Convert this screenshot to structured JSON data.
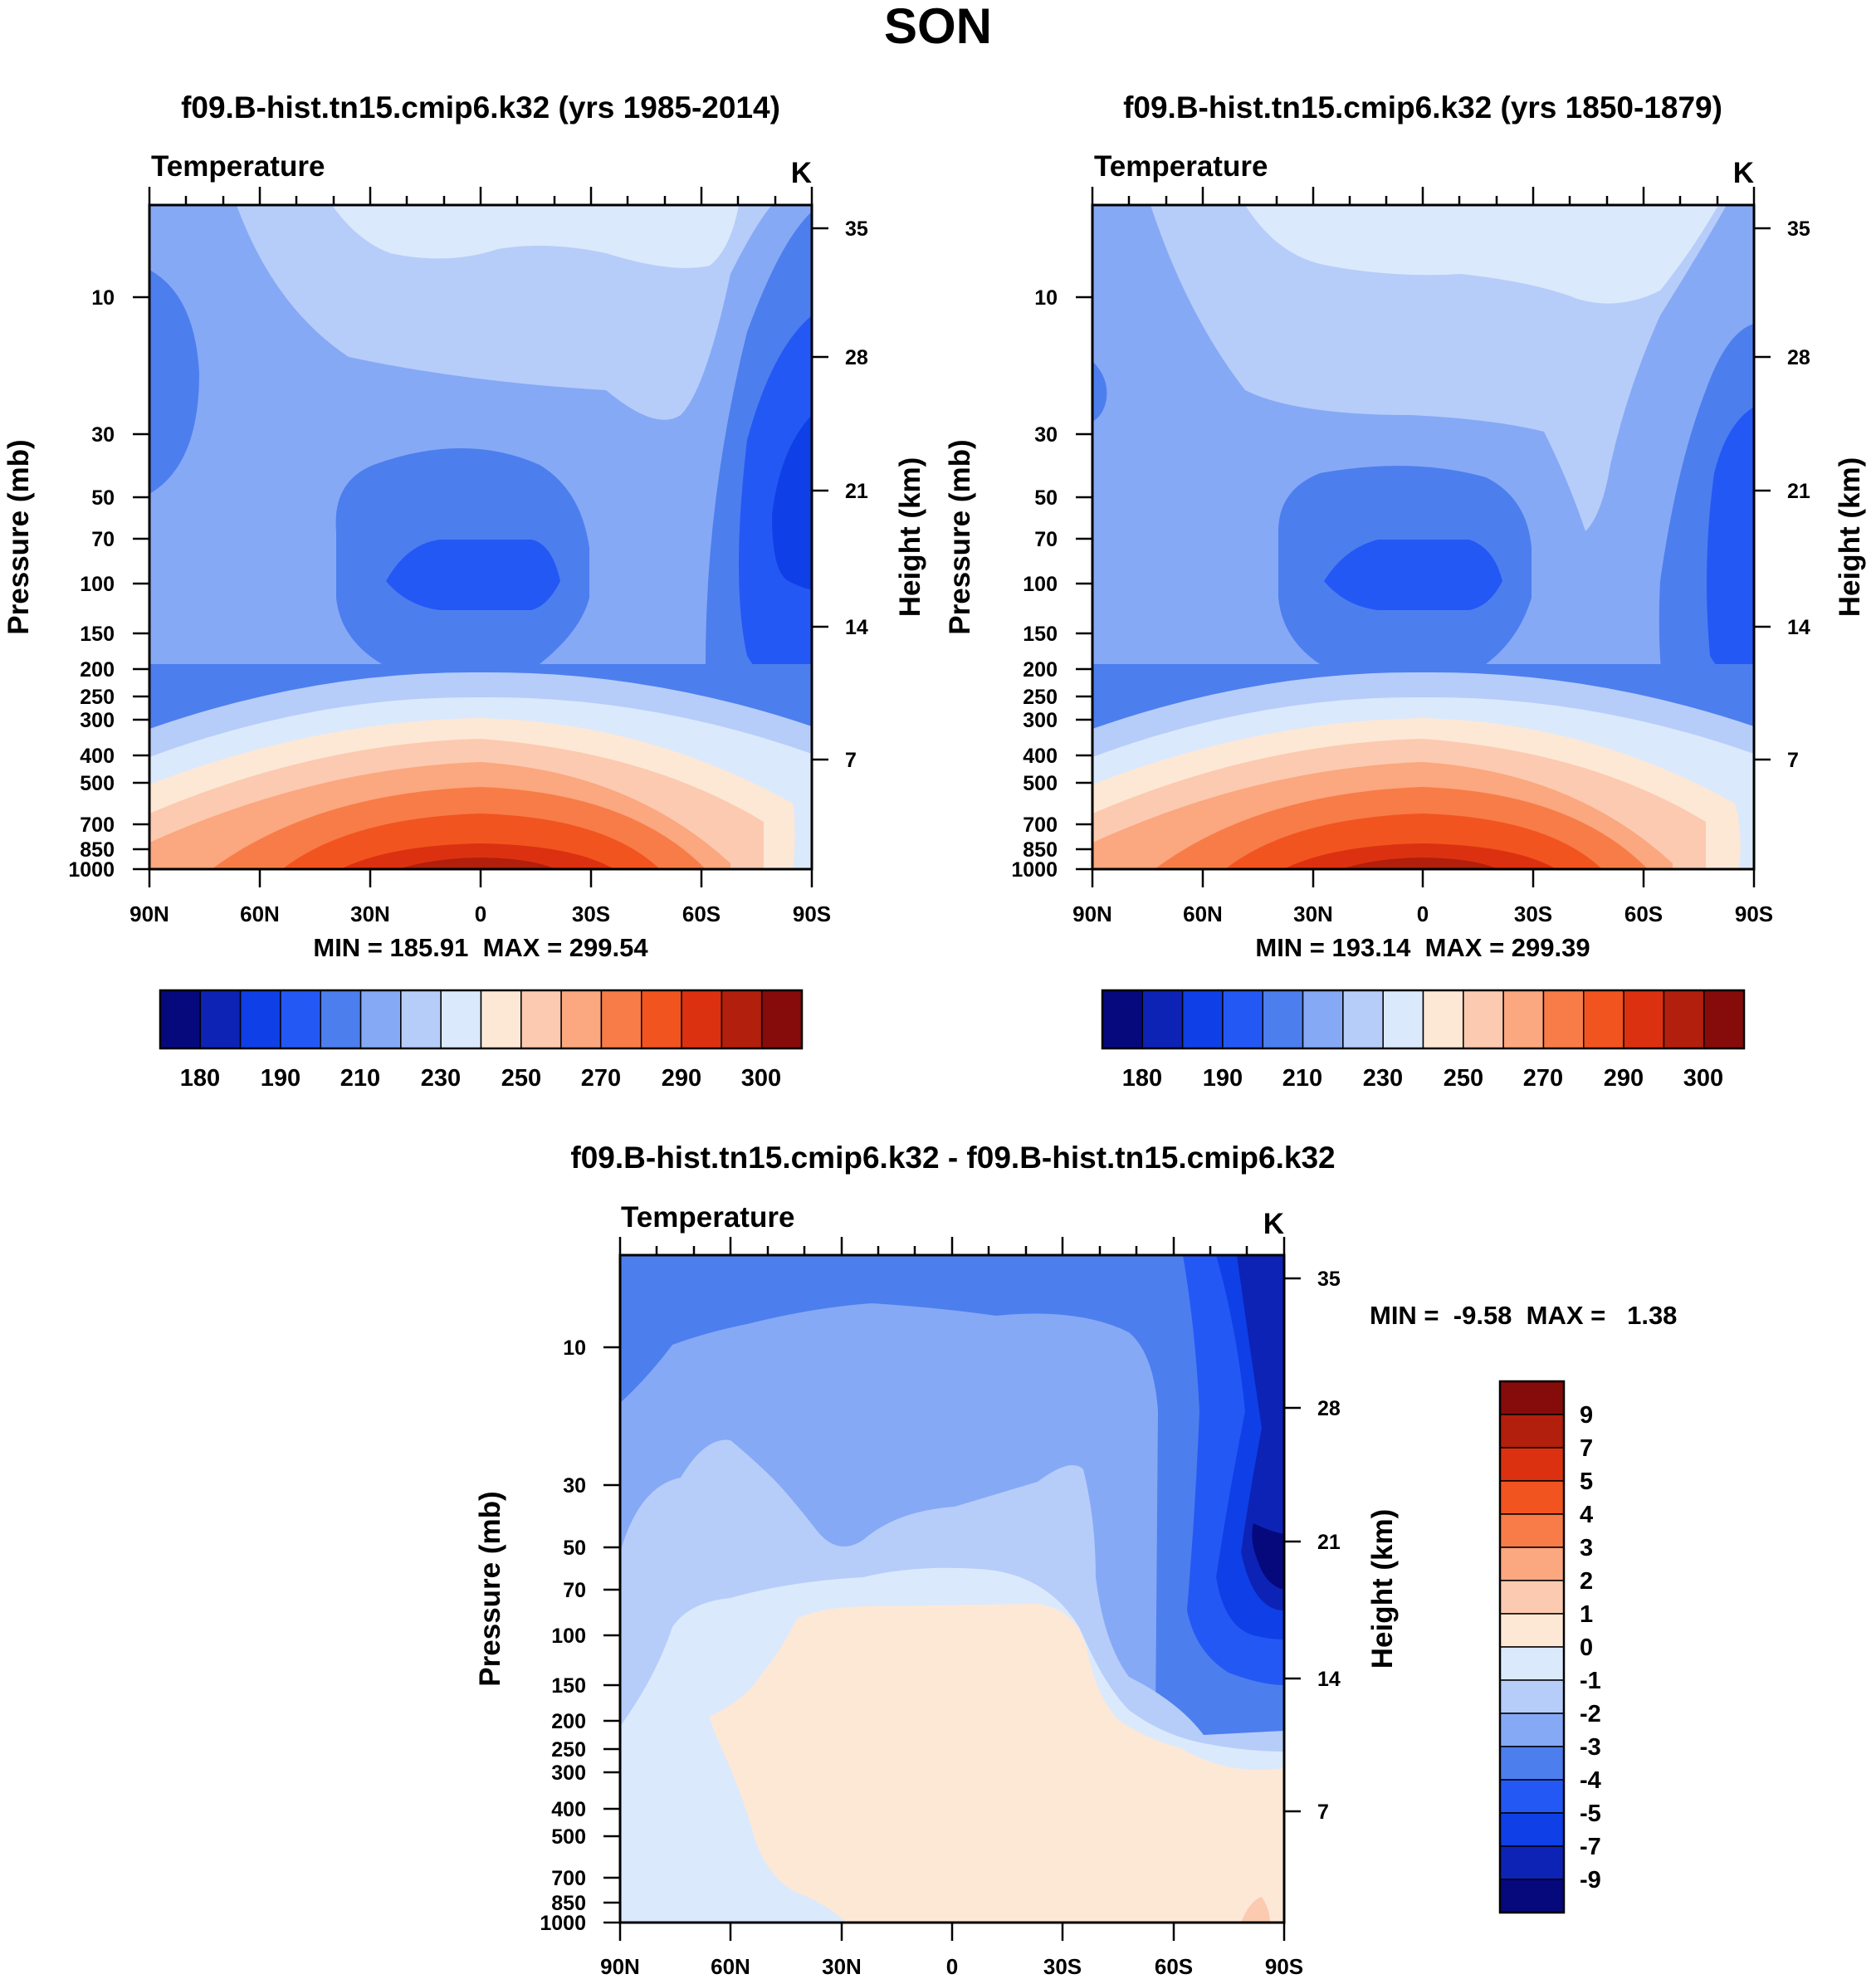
{
  "figure_title": "SON",
  "chart_data": [
    {
      "type": "heatmap",
      "title": "f09.B-hist.tn15.cmip6.k32 (yrs 1985-2014)",
      "left_label": "Temperature",
      "right_label": "K",
      "ylabel": "Pressure (mb)",
      "y2label": "Height (km)",
      "x_ticklabels": [
        "90N",
        "60N",
        "30N",
        "0",
        "30S",
        "60S",
        "90S"
      ],
      "y_ticklabels": [
        "10",
        "30",
        "50",
        "70",
        "100",
        "150",
        "200",
        "250",
        "300",
        "400",
        "500",
        "700",
        "850",
        "1000"
      ],
      "y2_ticklabels": [
        "35",
        "28",
        "21",
        "14",
        "7"
      ],
      "stats_text": "MIN = 185.91  MAX = 299.54",
      "min": 185.91,
      "max": 299.54,
      "colorbar": {
        "orientation": "horizontal",
        "labels": [
          "180",
          "190",
          "210",
          "230",
          "250",
          "270",
          "290",
          "300"
        ],
        "colors": [
          "#06097c",
          "#0d23b6",
          "#0f3fe6",
          "#2458f5",
          "#4d7eee",
          "#86a9f6",
          "#b6cdfa",
          "#dbe9fc",
          "#fde8d6",
          "#fccab0",
          "#fba77f",
          "#f77c48",
          "#f2541f",
          "#dc3110",
          "#b21f0c",
          "#860b0b"
        ]
      }
    },
    {
      "type": "heatmap",
      "title": "f09.B-hist.tn15.cmip6.k32 (yrs 1850-1879)",
      "left_label": "Temperature",
      "right_label": "K",
      "ylabel": "Pressure (mb)",
      "y2label": "Height (km)",
      "x_ticklabels": [
        "90N",
        "60N",
        "30N",
        "0",
        "30S",
        "60S",
        "90S"
      ],
      "y_ticklabels": [
        "10",
        "30",
        "50",
        "70",
        "100",
        "150",
        "200",
        "250",
        "300",
        "400",
        "500",
        "700",
        "850",
        "1000"
      ],
      "y2_ticklabels": [
        "35",
        "28",
        "21",
        "14",
        "7"
      ],
      "stats_text": "MIN = 193.14  MAX = 299.39",
      "min": 193.14,
      "max": 299.39,
      "colorbar": {
        "orientation": "horizontal",
        "labels": [
          "180",
          "190",
          "210",
          "230",
          "250",
          "270",
          "290",
          "300"
        ],
        "colors": [
          "#06097c",
          "#0d23b6",
          "#0f3fe6",
          "#2458f5",
          "#4d7eee",
          "#86a9f6",
          "#b6cdfa",
          "#dbe9fc",
          "#fde8d6",
          "#fccab0",
          "#fba77f",
          "#f77c48",
          "#f2541f",
          "#dc3110",
          "#b21f0c",
          "#860b0b"
        ]
      }
    },
    {
      "type": "heatmap",
      "title": "f09.B-hist.tn15.cmip6.k32 - f09.B-hist.tn15.cmip6.k32",
      "left_label": "Temperature",
      "right_label": "K",
      "ylabel": "Pressure (mb)",
      "y2label": "Height (km)",
      "x_ticklabels": [
        "90N",
        "60N",
        "30N",
        "0",
        "30S",
        "60S",
        "90S"
      ],
      "y_ticklabels": [
        "10",
        "30",
        "50",
        "70",
        "100",
        "150",
        "200",
        "250",
        "300",
        "400",
        "500",
        "700",
        "850",
        "1000"
      ],
      "y2_ticklabels": [
        "35",
        "28",
        "21",
        "14",
        "7"
      ],
      "stats_text": "MIN =  -9.58  MAX =   1.38",
      "min": -9.58,
      "max": 1.38,
      "colorbar": {
        "orientation": "vertical",
        "labels": [
          "9",
          "7",
          "5",
          "4",
          "3",
          "2",
          "1",
          "0",
          "-1",
          "-2",
          "-3",
          "-4",
          "-5",
          "-7",
          "-9"
        ],
        "colors": [
          "#860b0b",
          "#b21f0c",
          "#dc3110",
          "#f2541f",
          "#f77c48",
          "#fba77f",
          "#fccab0",
          "#fde8d6",
          "#dbe9fc",
          "#b6cdfa",
          "#86a9f6",
          "#4d7eee",
          "#2458f5",
          "#0f3fe6",
          "#0d23b6",
          "#06097c"
        ]
      }
    }
  ]
}
